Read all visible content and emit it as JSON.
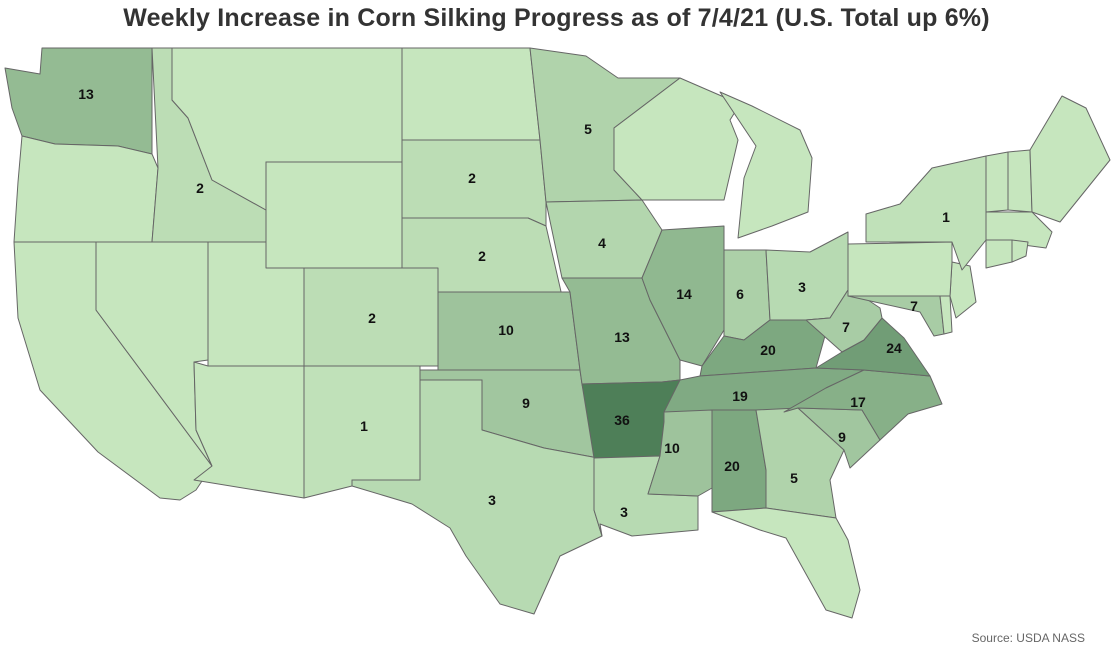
{
  "title": "Weekly Increase in Corn Silking Progress as of 7/4/21 (U.S. Total up 6%)",
  "source": "Source: USDA NASS",
  "colors": {
    "scale_low": "#c6e6be",
    "scale_high": "#4e7f58",
    "border": "#666666"
  },
  "map_data": {
    "type": "choropleth",
    "value_range": [
      0,
      36
    ],
    "states": [
      {
        "state": "WA",
        "value": 13,
        "label": "13"
      },
      {
        "state": "OR",
        "value": 0,
        "label": ""
      },
      {
        "state": "CA",
        "value": 0,
        "label": ""
      },
      {
        "state": "NV",
        "value": 0,
        "label": ""
      },
      {
        "state": "ID",
        "value": 2,
        "label": "2"
      },
      {
        "state": "MT",
        "value": 0,
        "label": ""
      },
      {
        "state": "WY",
        "value": 0,
        "label": ""
      },
      {
        "state": "UT",
        "value": 0,
        "label": ""
      },
      {
        "state": "AZ",
        "value": 0,
        "label": ""
      },
      {
        "state": "CO",
        "value": 2,
        "label": "2"
      },
      {
        "state": "NM",
        "value": 1,
        "label": "1"
      },
      {
        "state": "ND",
        "value": 0,
        "label": ""
      },
      {
        "state": "SD",
        "value": 2,
        "label": "2"
      },
      {
        "state": "NE",
        "value": 2,
        "label": "2"
      },
      {
        "state": "KS",
        "value": 10,
        "label": "10"
      },
      {
        "state": "OK",
        "value": 9,
        "label": "9"
      },
      {
        "state": "TX",
        "value": 3,
        "label": "3"
      },
      {
        "state": "MN",
        "value": 5,
        "label": "5"
      },
      {
        "state": "IA",
        "value": 4,
        "label": "4"
      },
      {
        "state": "MO",
        "value": 13,
        "label": "13"
      },
      {
        "state": "AR",
        "value": 36,
        "label": "36"
      },
      {
        "state": "LA",
        "value": 3,
        "label": "3"
      },
      {
        "state": "WI",
        "value": 0,
        "label": ""
      },
      {
        "state": "IL",
        "value": 14,
        "label": "14"
      },
      {
        "state": "MI",
        "value": 0,
        "label": ""
      },
      {
        "state": "IN",
        "value": 6,
        "label": "6"
      },
      {
        "state": "OH",
        "value": 3,
        "label": "3"
      },
      {
        "state": "KY",
        "value": 20,
        "label": "20"
      },
      {
        "state": "TN",
        "value": 19,
        "label": "19"
      },
      {
        "state": "MS",
        "value": 10,
        "label": "10"
      },
      {
        "state": "AL",
        "value": 20,
        "label": "20"
      },
      {
        "state": "GA",
        "value": 5,
        "label": "5"
      },
      {
        "state": "FL",
        "value": 0,
        "label": ""
      },
      {
        "state": "SC",
        "value": 9,
        "label": "9"
      },
      {
        "state": "NC",
        "value": 17,
        "label": "17"
      },
      {
        "state": "VA",
        "value": 24,
        "label": "24"
      },
      {
        "state": "WV",
        "value": 7,
        "label": "7"
      },
      {
        "state": "MD",
        "value": 7,
        "label": "7"
      },
      {
        "state": "DE",
        "value": 0,
        "label": ""
      },
      {
        "state": "NJ",
        "value": 0,
        "label": ""
      },
      {
        "state": "PA",
        "value": 0,
        "label": ""
      },
      {
        "state": "NY",
        "value": 1,
        "label": "1"
      },
      {
        "state": "VT",
        "value": 0,
        "label": ""
      },
      {
        "state": "NH",
        "value": 0,
        "label": ""
      },
      {
        "state": "ME",
        "value": 0,
        "label": ""
      },
      {
        "state": "MA",
        "value": 0,
        "label": ""
      },
      {
        "state": "CT",
        "value": 0,
        "label": ""
      },
      {
        "state": "RI",
        "value": 0,
        "label": ""
      }
    ]
  }
}
